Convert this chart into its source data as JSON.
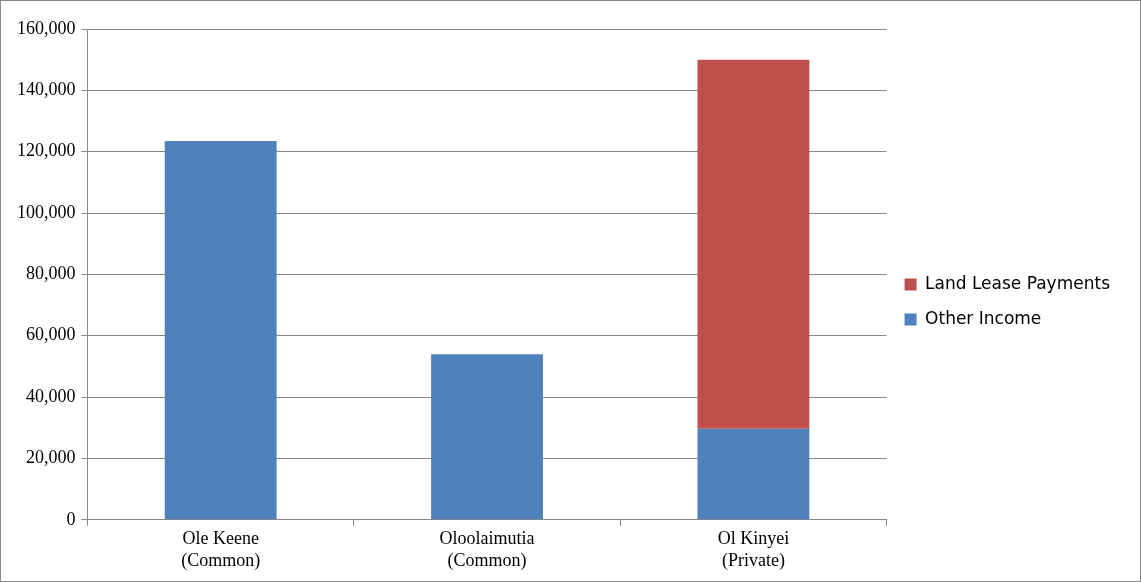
{
  "chart_data": {
    "type": "bar",
    "stacked": true,
    "categories": [
      "Ole Keene\n(Common)",
      "Oloolaimutia\n(Common)",
      "Ol Kinyei\n(Private)"
    ],
    "series": [
      {
        "name": "Other Income",
        "color": "#4f81bd",
        "values": [
          123500,
          54000,
          29700
        ]
      },
      {
        "name": "Land Lease Payments",
        "color": "#c0504d",
        "values": [
          null,
          null,
          120300
        ]
      }
    ],
    "ylim": [
      0,
      160000
    ],
    "yticks": [
      0,
      {
        "value": 20000,
        "label": "20,000"
      },
      {
        "value": 40000,
        "label": "40,000"
      },
      {
        "value": 60000,
        "label": "60,000"
      },
      {
        "value": 80000,
        "label": "80,000"
      },
      {
        "value": 100000,
        "label": "100,000"
      },
      {
        "value": 120000,
        "label": "120,000"
      },
      {
        "value": 140000,
        "label": "140,000"
      },
      {
        "value": 160000,
        "label": "160,000"
      }
    ],
    "grid": "y",
    "legend": "right"
  }
}
